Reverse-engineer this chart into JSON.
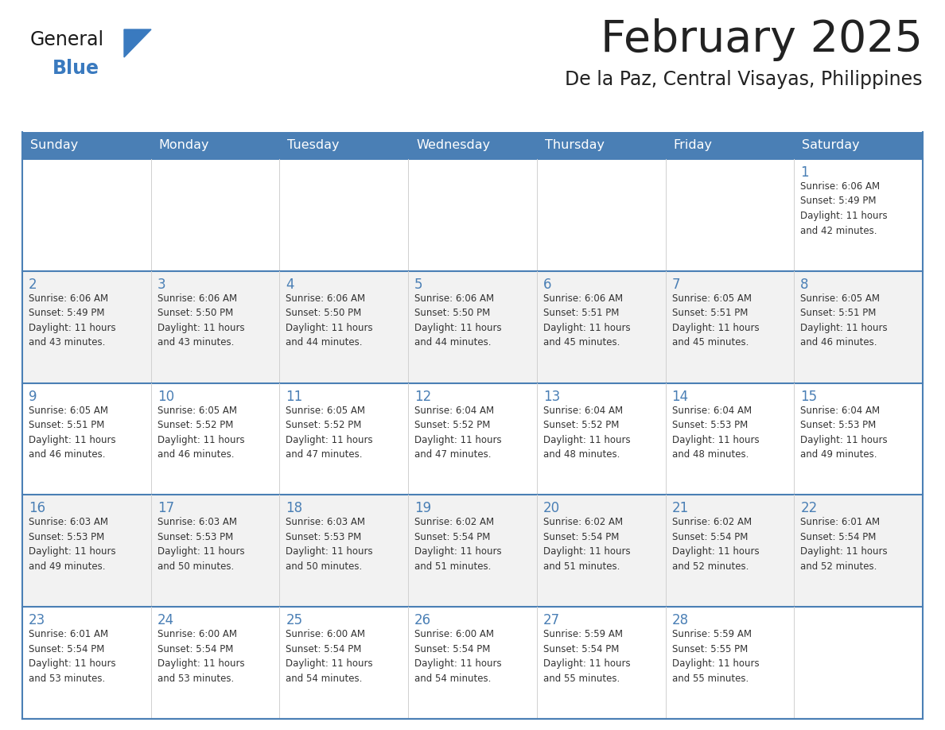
{
  "title": "February 2025",
  "subtitle": "De la Paz, Central Visayas, Philippines",
  "header_bg": "#4a7fb5",
  "header_text_color": "#ffffff",
  "cell_bg_even": "#ffffff",
  "cell_bg_odd": "#f2f2f2",
  "row_separator_color": "#4a7fb5",
  "col_separator_color": "#d0d0d0",
  "outer_border_color": "#4a7fb5",
  "day_headers": [
    "Sunday",
    "Monday",
    "Tuesday",
    "Wednesday",
    "Thursday",
    "Friday",
    "Saturday"
  ],
  "title_color": "#222222",
  "subtitle_color": "#222222",
  "day_num_color": "#4a7fb5",
  "text_color": "#333333",
  "logo_general_color": "#1a1a1a",
  "logo_blue_color": "#3a7abf",
  "logo_tri_color": "#3a7abf",
  "weeks": [
    [
      {
        "day": null,
        "info": ""
      },
      {
        "day": null,
        "info": ""
      },
      {
        "day": null,
        "info": ""
      },
      {
        "day": null,
        "info": ""
      },
      {
        "day": null,
        "info": ""
      },
      {
        "day": null,
        "info": ""
      },
      {
        "day": 1,
        "info": "Sunrise: 6:06 AM\nSunset: 5:49 PM\nDaylight: 11 hours\nand 42 minutes."
      }
    ],
    [
      {
        "day": 2,
        "info": "Sunrise: 6:06 AM\nSunset: 5:49 PM\nDaylight: 11 hours\nand 43 minutes."
      },
      {
        "day": 3,
        "info": "Sunrise: 6:06 AM\nSunset: 5:50 PM\nDaylight: 11 hours\nand 43 minutes."
      },
      {
        "day": 4,
        "info": "Sunrise: 6:06 AM\nSunset: 5:50 PM\nDaylight: 11 hours\nand 44 minutes."
      },
      {
        "day": 5,
        "info": "Sunrise: 6:06 AM\nSunset: 5:50 PM\nDaylight: 11 hours\nand 44 minutes."
      },
      {
        "day": 6,
        "info": "Sunrise: 6:06 AM\nSunset: 5:51 PM\nDaylight: 11 hours\nand 45 minutes."
      },
      {
        "day": 7,
        "info": "Sunrise: 6:05 AM\nSunset: 5:51 PM\nDaylight: 11 hours\nand 45 minutes."
      },
      {
        "day": 8,
        "info": "Sunrise: 6:05 AM\nSunset: 5:51 PM\nDaylight: 11 hours\nand 46 minutes."
      }
    ],
    [
      {
        "day": 9,
        "info": "Sunrise: 6:05 AM\nSunset: 5:51 PM\nDaylight: 11 hours\nand 46 minutes."
      },
      {
        "day": 10,
        "info": "Sunrise: 6:05 AM\nSunset: 5:52 PM\nDaylight: 11 hours\nand 46 minutes."
      },
      {
        "day": 11,
        "info": "Sunrise: 6:05 AM\nSunset: 5:52 PM\nDaylight: 11 hours\nand 47 minutes."
      },
      {
        "day": 12,
        "info": "Sunrise: 6:04 AM\nSunset: 5:52 PM\nDaylight: 11 hours\nand 47 minutes."
      },
      {
        "day": 13,
        "info": "Sunrise: 6:04 AM\nSunset: 5:52 PM\nDaylight: 11 hours\nand 48 minutes."
      },
      {
        "day": 14,
        "info": "Sunrise: 6:04 AM\nSunset: 5:53 PM\nDaylight: 11 hours\nand 48 minutes."
      },
      {
        "day": 15,
        "info": "Sunrise: 6:04 AM\nSunset: 5:53 PM\nDaylight: 11 hours\nand 49 minutes."
      }
    ],
    [
      {
        "day": 16,
        "info": "Sunrise: 6:03 AM\nSunset: 5:53 PM\nDaylight: 11 hours\nand 49 minutes."
      },
      {
        "day": 17,
        "info": "Sunrise: 6:03 AM\nSunset: 5:53 PM\nDaylight: 11 hours\nand 50 minutes."
      },
      {
        "day": 18,
        "info": "Sunrise: 6:03 AM\nSunset: 5:53 PM\nDaylight: 11 hours\nand 50 minutes."
      },
      {
        "day": 19,
        "info": "Sunrise: 6:02 AM\nSunset: 5:54 PM\nDaylight: 11 hours\nand 51 minutes."
      },
      {
        "day": 20,
        "info": "Sunrise: 6:02 AM\nSunset: 5:54 PM\nDaylight: 11 hours\nand 51 minutes."
      },
      {
        "day": 21,
        "info": "Sunrise: 6:02 AM\nSunset: 5:54 PM\nDaylight: 11 hours\nand 52 minutes."
      },
      {
        "day": 22,
        "info": "Sunrise: 6:01 AM\nSunset: 5:54 PM\nDaylight: 11 hours\nand 52 minutes."
      }
    ],
    [
      {
        "day": 23,
        "info": "Sunrise: 6:01 AM\nSunset: 5:54 PM\nDaylight: 11 hours\nand 53 minutes."
      },
      {
        "day": 24,
        "info": "Sunrise: 6:00 AM\nSunset: 5:54 PM\nDaylight: 11 hours\nand 53 minutes."
      },
      {
        "day": 25,
        "info": "Sunrise: 6:00 AM\nSunset: 5:54 PM\nDaylight: 11 hours\nand 54 minutes."
      },
      {
        "day": 26,
        "info": "Sunrise: 6:00 AM\nSunset: 5:54 PM\nDaylight: 11 hours\nand 54 minutes."
      },
      {
        "day": 27,
        "info": "Sunrise: 5:59 AM\nSunset: 5:54 PM\nDaylight: 11 hours\nand 55 minutes."
      },
      {
        "day": 28,
        "info": "Sunrise: 5:59 AM\nSunset: 5:55 PM\nDaylight: 11 hours\nand 55 minutes."
      },
      {
        "day": null,
        "info": ""
      }
    ]
  ]
}
